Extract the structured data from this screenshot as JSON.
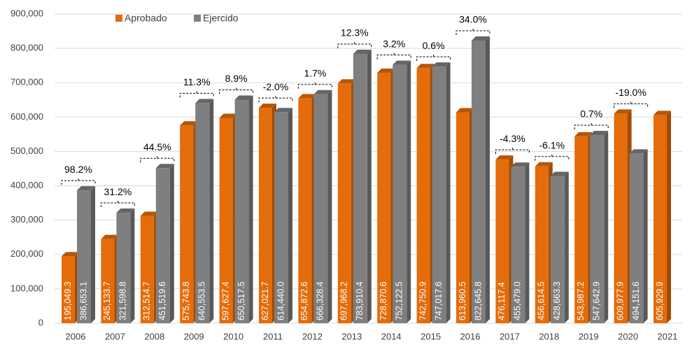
{
  "chart_data": {
    "type": "bar",
    "categories": [
      "2006",
      "2007",
      "2008",
      "2009",
      "2010",
      "2011",
      "2012",
      "2013",
      "2014",
      "2015",
      "2016",
      "2017",
      "2018",
      "2019",
      "2020",
      "2021"
    ],
    "series": [
      {
        "name": "Aprobado",
        "color": "#E46C0A",
        "values": [
          195049.3,
          245133.7,
          312514.7,
          575743.8,
          597627.4,
          627021.7,
          654872.6,
          697968.2,
          728870.6,
          742750.9,
          613960.5,
          476117.4,
          456614.5,
          543987.2,
          609977.9,
          605929.9
        ],
        "value_labels": [
          "195,049.3",
          "245,133.7",
          "312,514.7",
          "575,743.8",
          "597,627.4",
          "627,021.7",
          "654,872.6",
          "697,968.2",
          "728,870.6",
          "742,750.9",
          "613,960.5",
          "476,117.4",
          "456,614.5",
          "543,987.2",
          "609,977.9",
          "605,929.9"
        ]
      },
      {
        "name": "Ejercido",
        "color": "#7F7F7F",
        "values": [
          386653.1,
          321598.8,
          451519.6,
          640553.5,
          650517.5,
          614440.0,
          666328.4,
          783910.4,
          752122.5,
          747017.6,
          822645.8,
          455479.0,
          428663.3,
          547642.9,
          494151.6,
          null
        ],
        "value_labels": [
          "386,653.1",
          "321,598.8",
          "451,519.6",
          "640,553.5",
          "650,517.5",
          "614,440.0",
          "666,328.4",
          "783,910.4",
          "752,122.5",
          "747,017.6",
          "822,645.8",
          "455,479.0",
          "428,663.3",
          "547,642.9",
          "494,151.6",
          null
        ]
      }
    ],
    "change_labels": [
      "98.2%",
      "31.2%",
      "44.5%",
      "11.3%",
      "8.9%",
      "-2.0%",
      "1.7%",
      "12.3%",
      "3.2%",
      "0.6%",
      "34.0%",
      "-4.3%",
      "-6.1%",
      "0.7%",
      "-19.0%"
    ],
    "ylim": [
      0,
      900000
    ],
    "yticks": [
      0,
      {
        "value": 100000,
        "label": "100,000"
      },
      {
        "value": 200000,
        "label": "200,000"
      },
      {
        "value": 300000,
        "label": "300,000"
      },
      {
        "value": 400000,
        "label": "400,000"
      },
      {
        "value": 500000,
        "label": "500,000"
      },
      {
        "value": 600000,
        "label": "600,000"
      },
      {
        "value": 700000,
        "label": "700,000"
      },
      {
        "value": 800000,
        "label": "800,000"
      },
      {
        "value": 900000,
        "label": "900,000"
      }
    ],
    "grid": true,
    "legend": "top-left"
  }
}
